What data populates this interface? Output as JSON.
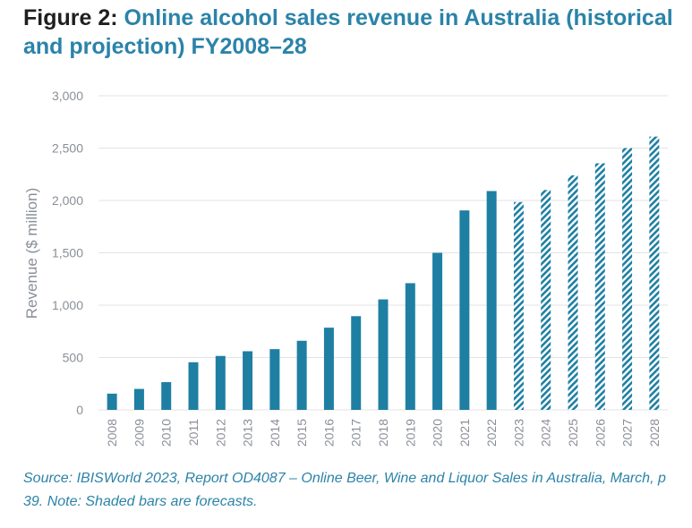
{
  "header": {
    "figure_label": "Figure 2:",
    "title": "Online alcohol sales revenue in Australia (historical and projection) FY2008–28"
  },
  "footer": {
    "source": "Source: IBISWorld 2023, Report OD4087 – Online Beer, Wine and Liquor Sales in Australia, March, p 39. Note: Shaded bars are forecasts."
  },
  "chart_data": {
    "type": "bar",
    "title": "Online alcohol sales revenue in Australia (historical and projection) FY2008–28",
    "xlabel": "",
    "ylabel": "Revenue ($ million)",
    "ylim": [
      0,
      3000
    ],
    "yticks": [
      0,
      500,
      1000,
      1500,
      2000,
      2500,
      3000
    ],
    "ytick_labels": [
      "0",
      "500",
      "1,000",
      "1,500",
      "2,000",
      "2,500",
      "3,000"
    ],
    "grid": true,
    "categories": [
      "2008",
      "2009",
      "2010",
      "2011",
      "2012",
      "2013",
      "2014",
      "2015",
      "2016",
      "2017",
      "2018",
      "2019",
      "2020",
      "2021",
      "2022",
      "2023",
      "2024",
      "2025",
      "2026",
      "2027",
      "2028"
    ],
    "values": [
      155,
      200,
      265,
      455,
      515,
      560,
      580,
      660,
      785,
      895,
      1055,
      1210,
      1500,
      1905,
      2090,
      1985,
      2100,
      2240,
      2355,
      2500,
      2610
    ],
    "forecast": [
      false,
      false,
      false,
      false,
      false,
      false,
      false,
      false,
      false,
      false,
      false,
      false,
      false,
      false,
      false,
      true,
      true,
      true,
      true,
      true,
      true
    ],
    "colors": {
      "bar": "#1e7fa3",
      "grid": "#e3e3e3",
      "axis_text": "#8a8f96",
      "title_accent": "#2b83a8"
    }
  }
}
